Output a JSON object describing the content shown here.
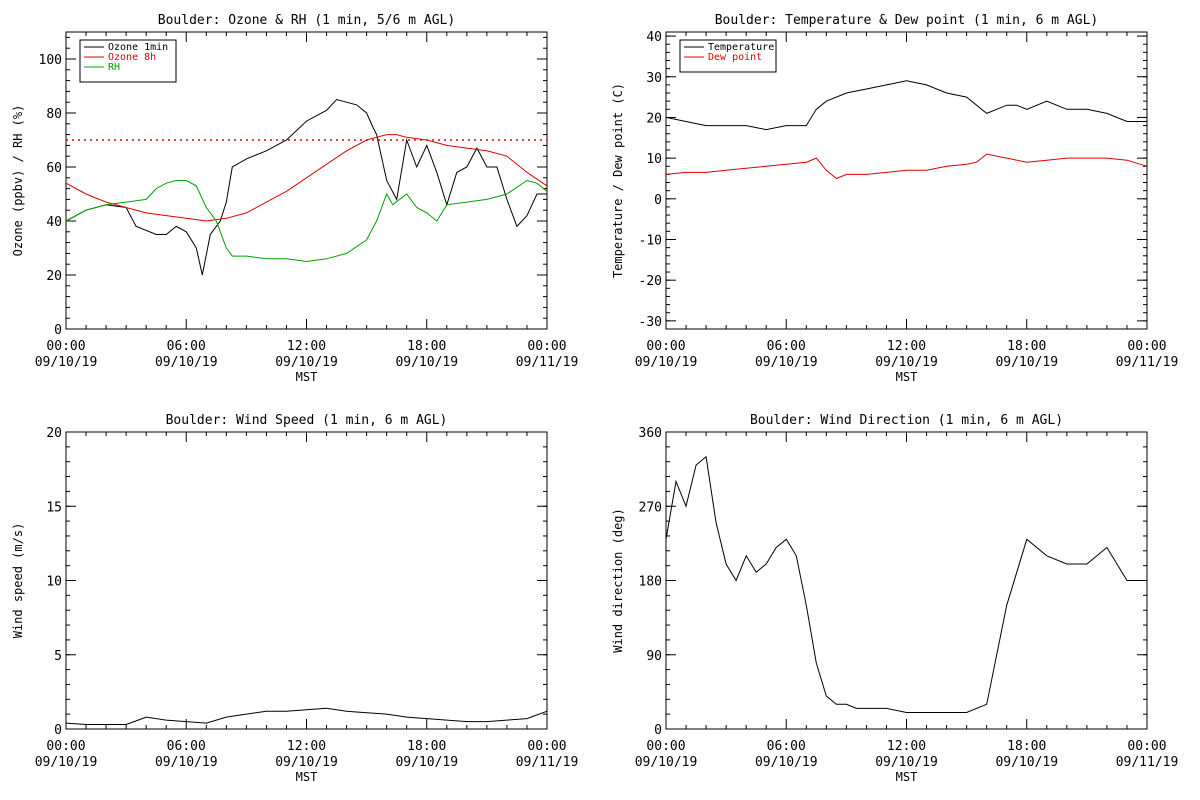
{
  "x_axis": {
    "label": "MST",
    "ticks": [
      {
        "time": "00:00",
        "date": "09/10/19"
      },
      {
        "time": "06:00",
        "date": "09/10/19"
      },
      {
        "time": "12:00",
        "date": "09/10/19"
      },
      {
        "time": "18:00",
        "date": "09/10/19"
      },
      {
        "time": "00:00",
        "date": "09/11/19"
      }
    ]
  },
  "chart_data": [
    {
      "id": "ozone_rh",
      "type": "line",
      "title": "Boulder: Ozone & RH (1 min, 5/6 m AGL)",
      "ylabel": "Ozone (ppbv) / RH (%)",
      "xlabel": "MST",
      "xlim": [
        0,
        24
      ],
      "ylim": [
        0,
        110
      ],
      "yticks": [
        0,
        20,
        40,
        60,
        80,
        100
      ],
      "legend_position": "top-left",
      "reference_line": {
        "y": 70,
        "color": "#e00000",
        "style": "dotted"
      },
      "series": [
        {
          "name": "Ozone 1min",
          "color": "#000000",
          "x": [
            0,
            1,
            2,
            3,
            3.5,
            4.5,
            5,
            5.5,
            6,
            6.5,
            6.8,
            7.2,
            7.7,
            8,
            8.3,
            9,
            10,
            11,
            12,
            13,
            13.5,
            14,
            14.5,
            15,
            15.3,
            15.5,
            16,
            16.5,
            17,
            17.5,
            18,
            18.5,
            19,
            19.5,
            20,
            20.5,
            21,
            21.5,
            22,
            22.5,
            23,
            23.5,
            24
          ],
          "y": [
            40,
            44,
            46,
            45,
            38,
            35,
            35,
            38,
            36,
            30,
            20,
            35,
            40,
            47,
            60,
            63,
            66,
            70,
            77,
            81,
            85,
            84,
            83,
            80,
            75,
            72,
            55,
            48,
            70,
            60,
            68,
            58,
            46,
            58,
            60,
            67,
            60,
            60,
            48,
            38,
            42,
            50,
            50
          ]
        },
        {
          "name": "Ozone 8h",
          "color": "#e00000",
          "x": [
            0,
            1,
            2,
            3,
            4,
            5,
            6,
            7,
            8,
            9,
            10,
            11,
            12,
            13,
            14,
            15,
            16,
            16.5,
            17,
            18,
            19,
            20,
            21,
            22,
            23,
            24
          ],
          "y": [
            54,
            50,
            47,
            45,
            43,
            42,
            41,
            40,
            41,
            43,
            47,
            51,
            56,
            61,
            66,
            70,
            72,
            72,
            71,
            70,
            68,
            67,
            66,
            64,
            58,
            53
          ]
        },
        {
          "name": "RH",
          "color": "#00a000",
          "x": [
            0,
            1,
            2,
            3,
            4,
            4.5,
            5,
            5.5,
            6,
            6.5,
            7,
            7.5,
            8,
            8.3,
            9,
            10,
            11,
            12,
            13,
            14,
            15,
            15.5,
            16,
            16.3,
            17,
            17.5,
            18,
            18.5,
            19,
            20,
            21,
            22,
            23,
            23.5,
            24
          ],
          "y": [
            40,
            44,
            46,
            47,
            48,
            52,
            54,
            55,
            55,
            53,
            45,
            40,
            30,
            27,
            27,
            26,
            26,
            25,
            26,
            28,
            33,
            40,
            50,
            46,
            50,
            45,
            43,
            40,
            46,
            47,
            48,
            50,
            55,
            54,
            51
          ]
        }
      ]
    },
    {
      "id": "temp_dew",
      "type": "line",
      "title": "Boulder: Temperature & Dew point (1 min, 6 m AGL)",
      "ylabel": "Temperature / Dew point (C)",
      "xlabel": "MST",
      "xlim": [
        0,
        24
      ],
      "ylim": [
        -32,
        41
      ],
      "yticks": [
        -30,
        -20,
        -10,
        0,
        10,
        20,
        30,
        40
      ],
      "legend_position": "top-left",
      "series": [
        {
          "name": "Temperature",
          "color": "#000000",
          "x": [
            0,
            1,
            2,
            3,
            4,
            5,
            6,
            7,
            7.5,
            8,
            9,
            10,
            11,
            12,
            13,
            14,
            15,
            16,
            16.5,
            17,
            17.5,
            18,
            19,
            20,
            21,
            22,
            23,
            24
          ],
          "y": [
            20,
            19,
            18,
            18,
            18,
            17,
            18,
            18,
            22,
            24,
            26,
            27,
            28,
            29,
            28,
            26,
            25,
            21,
            22,
            23,
            23,
            22,
            24,
            22,
            22,
            21,
            19,
            19
          ]
        },
        {
          "name": "Dew point",
          "color": "#e00000",
          "x": [
            0,
            1,
            2,
            3,
            4,
            5,
            6,
            7,
            7.5,
            8,
            8.5,
            9,
            10,
            11,
            12,
            13,
            14,
            15,
            15.5,
            16,
            17,
            18,
            19,
            20,
            21,
            22,
            23,
            24
          ],
          "y": [
            6,
            6.5,
            6.5,
            7,
            7.5,
            8,
            8.5,
            9,
            10,
            7,
            5,
            6,
            6,
            6.5,
            7,
            7,
            8,
            8.5,
            9,
            11,
            10,
            9,
            9.5,
            10,
            10,
            10,
            9.5,
            8
          ]
        }
      ]
    },
    {
      "id": "wind_speed",
      "type": "line",
      "title": "Boulder: Wind Speed (1 min, 6 m AGL)",
      "ylabel": "Wind speed (m/s)",
      "xlabel": "MST",
      "xlim": [
        0,
        24
      ],
      "ylim": [
        0,
        20
      ],
      "yticks": [
        0,
        5,
        10,
        15,
        20
      ],
      "series": [
        {
          "name": "Wind speed",
          "color": "#000000",
          "x": [
            0,
            1,
            2,
            3,
            4,
            5,
            6,
            7,
            8,
            9,
            10,
            11,
            12,
            13,
            14,
            15,
            16,
            17,
            18,
            19,
            20,
            21,
            22,
            23,
            24
          ],
          "y": [
            0.4,
            0.3,
            0.3,
            0.3,
            0.8,
            0.6,
            0.5,
            0.4,
            0.8,
            1.0,
            1.2,
            1.2,
            1.3,
            1.4,
            1.2,
            1.1,
            1.0,
            0.8,
            0.7,
            0.6,
            0.5,
            0.5,
            0.6,
            0.7,
            1.2
          ]
        }
      ]
    },
    {
      "id": "wind_direction",
      "type": "line",
      "title": "Boulder: Wind Direction (1 min, 6 m AGL)",
      "ylabel": "Wind direction (deg)",
      "xlabel": "MST",
      "xlim": [
        0,
        24
      ],
      "ylim": [
        0,
        360
      ],
      "yticks": [
        0,
        90,
        180,
        270,
        360
      ],
      "series": [
        {
          "name": "Wind direction",
          "color": "#000000",
          "x": [
            0,
            0.5,
            1,
            1.5,
            2,
            2.5,
            3,
            3.5,
            4,
            4.5,
            5,
            5.5,
            6,
            6.5,
            7,
            7.5,
            8,
            8.5,
            9,
            9.5,
            10,
            11,
            12,
            13,
            14,
            15,
            16,
            17,
            18,
            19,
            20,
            21,
            22,
            23,
            24
          ],
          "y": [
            230,
            300,
            270,
            320,
            330,
            250,
            200,
            180,
            210,
            190,
            200,
            220,
            230,
            210,
            150,
            80,
            40,
            30,
            30,
            25,
            25,
            25,
            20,
            20,
            20,
            20,
            30,
            150,
            230,
            210,
            200,
            200,
            220,
            180,
            180
          ]
        }
      ]
    }
  ]
}
